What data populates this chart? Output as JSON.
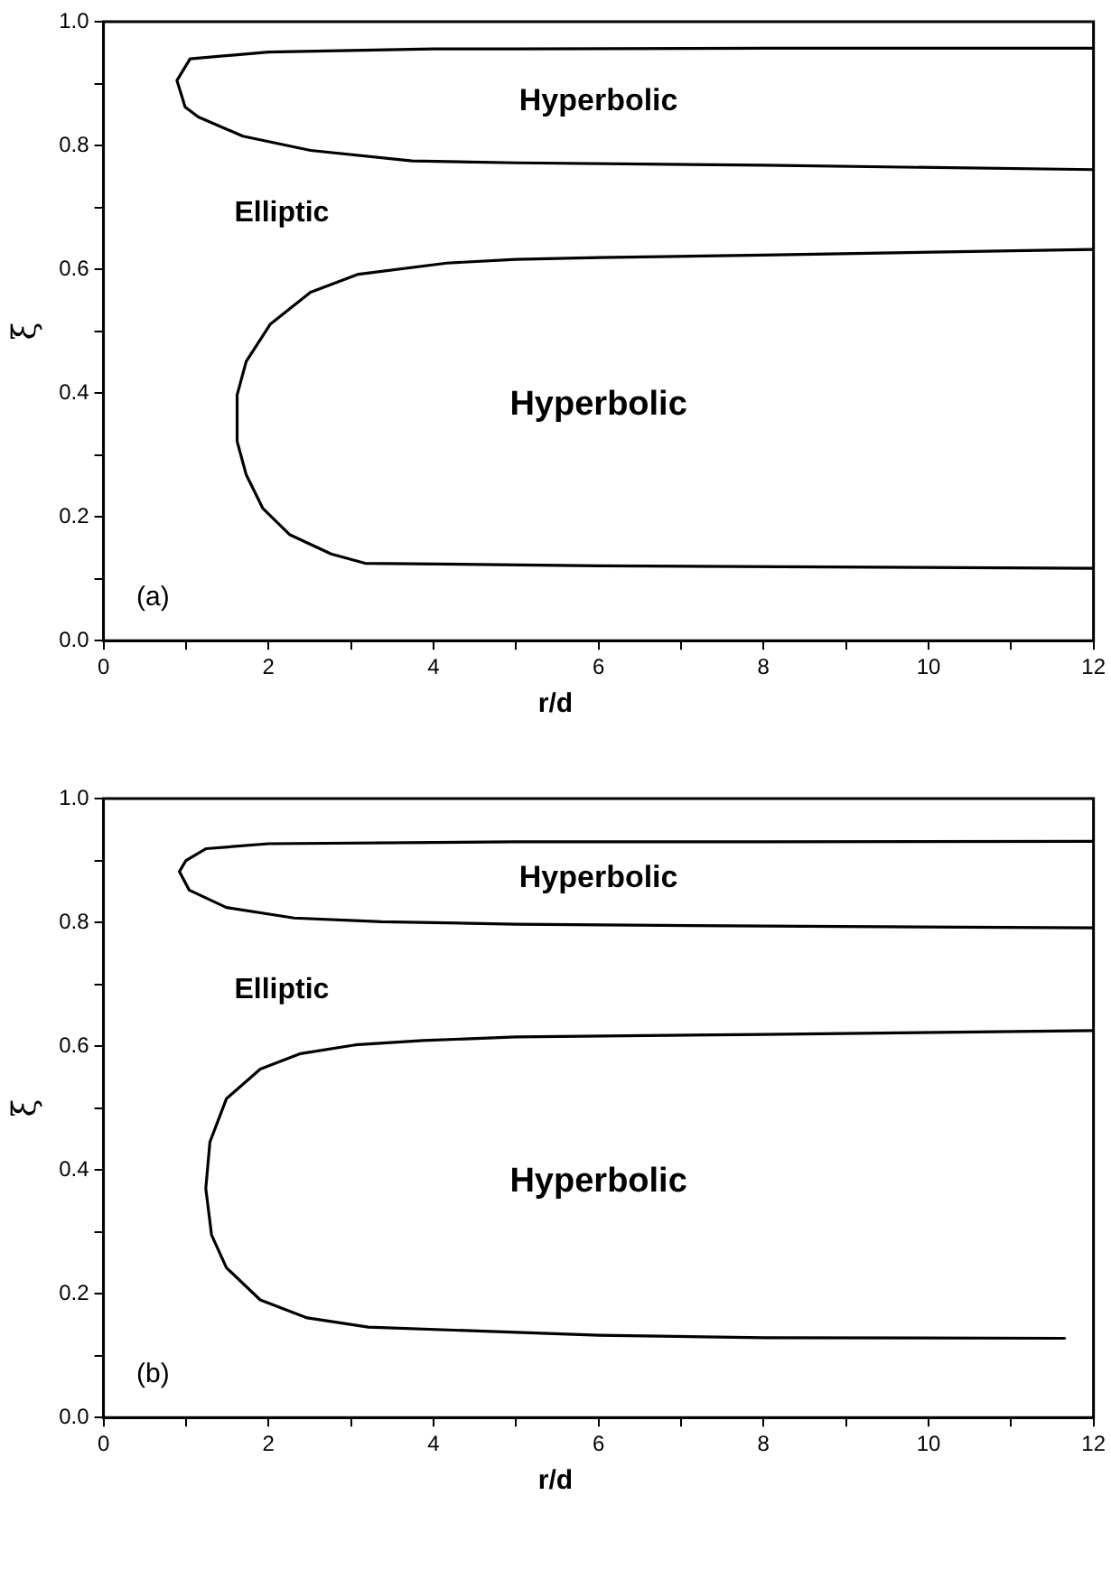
{
  "chart_data": [
    {
      "type": "line",
      "xlabel": "r/d",
      "ylabel": "ξ",
      "xlim": [
        0,
        12
      ],
      "ylim": [
        0,
        1
      ],
      "grid": false,
      "legend": false,
      "marker": "none",
      "line_style": "solid",
      "xticks": [
        0,
        {
          "value": 1,
          "label": null
        },
        2,
        {
          "value": 3,
          "label": null
        },
        4,
        {
          "value": 5,
          "label": null
        },
        6,
        {
          "value": 7,
          "label": null
        },
        8,
        {
          "value": 9,
          "label": null
        },
        10,
        {
          "value": 11,
          "label": null
        },
        12
      ],
      "yticks": [
        {
          "value": 0,
          "label": "0.0"
        },
        {
          "value": 0.1,
          "label": null
        },
        {
          "value": 0.2,
          "label": "0.2"
        },
        {
          "value": 0.3,
          "label": null
        },
        {
          "value": 0.4,
          "label": "0.4"
        },
        {
          "value": 0.5,
          "label": null
        },
        {
          "value": 0.6,
          "label": "0.6"
        },
        {
          "value": 0.7,
          "label": null
        },
        {
          "value": 0.8,
          "label": "0.8"
        },
        {
          "value": 0.9,
          "label": null
        },
        {
          "value": 1,
          "label": "1.0"
        }
      ],
      "series": [
        {
          "color": "#000000",
          "x": [
            12,
            8,
            5,
            4,
            2,
            1.05,
            0.89,
            0.99,
            1.15,
            1.69,
            2.51,
            3.74,
            5,
            8,
            12
          ],
          "values": [
            0.957,
            0.957,
            0.956,
            0.956,
            0.951,
            0.94,
            0.905,
            0.862,
            0.846,
            0.815,
            0.792,
            0.775,
            0.772,
            0.768,
            0.761
          ]
        },
        {
          "color": "#000000",
          "x": [
            12,
            8,
            6,
            5,
            4.16,
            3.09,
            2.51,
            2.02,
            1.73,
            1.62,
            1.62,
            1.73,
            1.93,
            2.26,
            2.76,
            3.17,
            6,
            12
          ],
          "values": [
            0.632,
            0.623,
            0.619,
            0.616,
            0.61,
            0.592,
            0.563,
            0.511,
            0.451,
            0.397,
            0.322,
            0.268,
            0.214,
            0.171,
            0.14,
            0.125,
            0.121,
            0.117
          ]
        }
      ],
      "annotations": [
        "Hyperbolic",
        "Elliptic",
        "Hyperbolic",
        "(a)"
      ]
    },
    {
      "type": "line",
      "xlabel": "r/d",
      "ylabel": "ξ",
      "xlim": [
        0,
        12
      ],
      "ylim": [
        0,
        1
      ],
      "grid": false,
      "legend": false,
      "marker": "none",
      "line_style": "solid",
      "xticks": [
        0,
        {
          "value": 1,
          "label": null
        },
        2,
        {
          "value": 3,
          "label": null
        },
        4,
        {
          "value": 5,
          "label": null
        },
        6,
        {
          "value": 7,
          "label": null
        },
        8,
        {
          "value": 9,
          "label": null
        },
        10,
        {
          "value": 11,
          "label": null
        },
        12
      ],
      "yticks": [
        {
          "value": 0,
          "label": "0.0"
        },
        {
          "value": 0.1,
          "label": null
        },
        {
          "value": 0.2,
          "label": "0.2"
        },
        {
          "value": 0.3,
          "label": null
        },
        {
          "value": 0.4,
          "label": "0.4"
        },
        {
          "value": 0.5,
          "label": null
        },
        {
          "value": 0.6,
          "label": "0.6"
        },
        {
          "value": 0.7,
          "label": null
        },
        {
          "value": 0.8,
          "label": "0.8"
        },
        {
          "value": 0.9,
          "label": null
        },
        {
          "value": 1,
          "label": "1.0"
        }
      ],
      "series": [
        {
          "color": "#000000",
          "x": [
            12,
            8,
            5,
            4,
            2,
            1.24,
            1.0,
            0.92,
            1.04,
            1.49,
            2.31,
            3.37,
            5,
            8,
            12
          ],
          "values": [
            0.931,
            0.93,
            0.93,
            0.929,
            0.927,
            0.919,
            0.9,
            0.882,
            0.852,
            0.824,
            0.807,
            0.801,
            0.797,
            0.794,
            0.791
          ]
        },
        {
          "color": "#000000",
          "x": [
            12,
            8,
            5,
            3.87,
            3.05,
            2.39,
            1.9,
            1.49,
            1.29,
            1.24,
            1.31,
            1.49,
            1.9,
            2.47,
            3.21,
            6,
            8,
            11.65
          ],
          "values": [
            0.625,
            0.619,
            0.615,
            0.609,
            0.602,
            0.588,
            0.563,
            0.515,
            0.445,
            0.37,
            0.295,
            0.242,
            0.19,
            0.161,
            0.146,
            0.133,
            0.129,
            0.128
          ]
        }
      ],
      "annotations": [
        "Hyperbolic",
        "Elliptic",
        "Hyperbolic",
        "(b)"
      ]
    }
  ]
}
